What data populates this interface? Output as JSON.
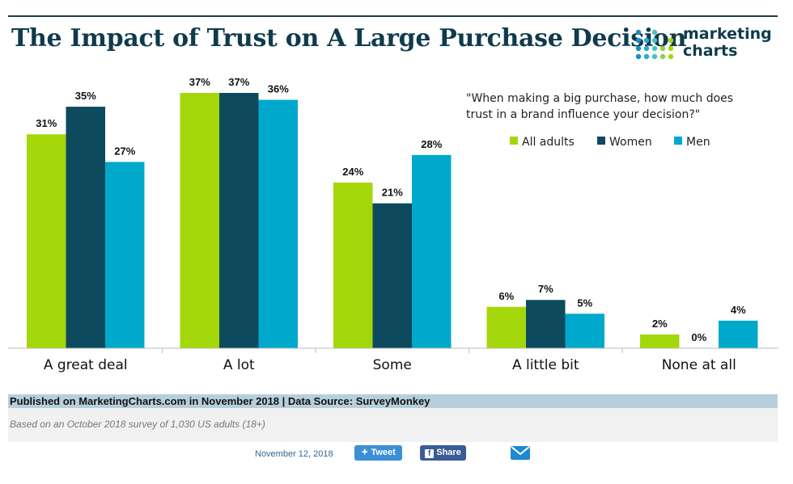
{
  "header": {
    "title": "The Impact of Trust on A Large Purchase Decision"
  },
  "logo": {
    "line1": "marketing",
    "line2": "charts"
  },
  "chart_data": {
    "type": "bar",
    "question": "\"When making a big purchase, how much does trust in a brand influence your decision?\"",
    "categories": [
      "A great deal",
      "A lot",
      "Some",
      "A little bit",
      "None at all"
    ],
    "series": [
      {
        "name": "All adults",
        "values": [
          31,
          37,
          24,
          6,
          2
        ]
      },
      {
        "name": "Women",
        "values": [
          35,
          37,
          21,
          7,
          0
        ]
      },
      {
        "name": "Men",
        "values": [
          27,
          36,
          28,
          5,
          4
        ]
      }
    ],
    "value_suffix": "%",
    "ylim": [
      0,
      37
    ],
    "colors": [
      "#a4d70a",
      "#0d4a5e",
      "#00a9cc"
    ],
    "legend_position": "top-right"
  },
  "footer": {
    "published": "Published on MarketingCharts.com in November 2018 | Data Source: SurveyMonkey",
    "note": "Based on an October 2018 survey of 1,030 US adults (18+)",
    "date": "November 12, 2018",
    "tweet_label": "Tweet",
    "share_label": "Share"
  },
  "icons": {
    "tweet": "bird-icon",
    "share": "facebook-icon",
    "email": "envelope-icon"
  }
}
